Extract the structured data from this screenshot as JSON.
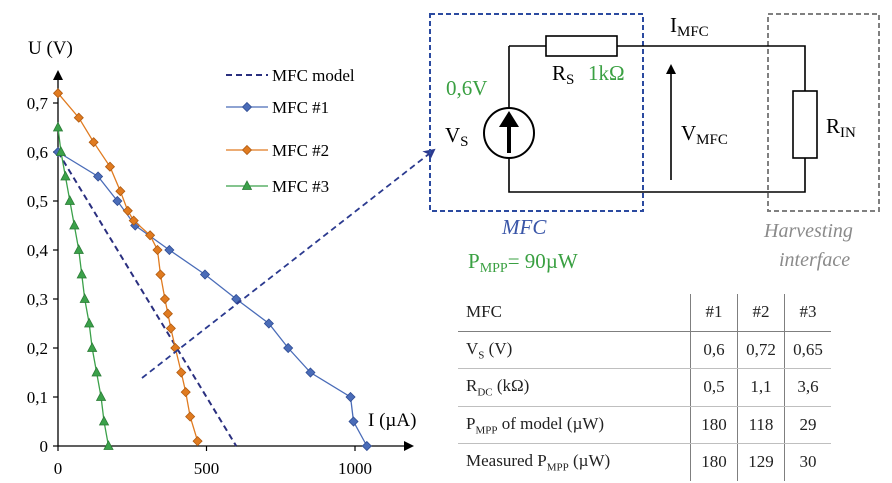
{
  "chart_data": {
    "type": "line",
    "ylabel": "U (V)",
    "xlabel": "I (µA)",
    "xlim": [
      0,
      1200
    ],
    "ylim": [
      0,
      0.8
    ],
    "xticks": [
      "0",
      "500",
      "1000"
    ],
    "xtick_values": [
      0,
      500,
      1000
    ],
    "yticks": [
      "0",
      "0,1",
      "0,2",
      "0,3",
      "0,4",
      "0,5",
      "0,6",
      "0,7"
    ],
    "ytick_values": [
      0,
      0.1,
      0.2,
      0.3,
      0.4,
      0.5,
      0.6,
      0.7
    ],
    "grid": false,
    "legend_position": "top-center",
    "series": [
      {
        "name": "MFC model",
        "style": "dashed",
        "marker": "none",
        "color": "#2a2f7f",
        "points": [
          [
            0,
            0.6
          ],
          [
            600,
            0.0
          ]
        ]
      },
      {
        "name": "MFC #1",
        "style": "solid",
        "marker": "diamond",
        "color": "#4a6cb8",
        "points": [
          [
            0,
            0.6
          ],
          [
            135,
            0.55
          ],
          [
            200,
            0.5
          ],
          [
            260,
            0.45
          ],
          [
            375,
            0.4
          ],
          [
            495,
            0.35
          ],
          [
            600,
            0.3
          ],
          [
            710,
            0.25
          ],
          [
            775,
            0.2
          ],
          [
            850,
            0.15
          ],
          [
            985,
            0.1
          ],
          [
            995,
            0.05
          ],
          [
            1040,
            0.0
          ]
        ]
      },
      {
        "name": "MFC #2",
        "style": "solid",
        "marker": "diamond",
        "color": "#e07b20",
        "points": [
          [
            0,
            0.72
          ],
          [
            70,
            0.67
          ],
          [
            120,
            0.62
          ],
          [
            175,
            0.57
          ],
          [
            210,
            0.52
          ],
          [
            235,
            0.48
          ],
          [
            255,
            0.46
          ],
          [
            310,
            0.43
          ],
          [
            335,
            0.4
          ],
          [
            345,
            0.35
          ],
          [
            360,
            0.3
          ],
          [
            370,
            0.27
          ],
          [
            380,
            0.24
          ],
          [
            395,
            0.2
          ],
          [
            415,
            0.15
          ],
          [
            430,
            0.11
          ],
          [
            445,
            0.06
          ],
          [
            470,
            0.01
          ]
        ]
      },
      {
        "name": "MFC #3",
        "style": "solid",
        "marker": "triangle",
        "color": "#3ba14a",
        "points": [
          [
            0,
            0.65
          ],
          [
            10,
            0.6
          ],
          [
            25,
            0.55
          ],
          [
            40,
            0.5
          ],
          [
            55,
            0.45
          ],
          [
            70,
            0.4
          ],
          [
            80,
            0.35
          ],
          [
            90,
            0.3
          ],
          [
            105,
            0.25
          ],
          [
            115,
            0.2
          ],
          [
            130,
            0.15
          ],
          [
            145,
            0.1
          ],
          [
            155,
            0.05
          ],
          [
            170,
            0.0
          ]
        ]
      }
    ]
  },
  "circuit": {
    "current_label": "I",
    "current_sub": "MFC",
    "source_value": "0,6V",
    "source_label": "V",
    "source_sub": "S",
    "rs_label": "R",
    "rs_sub": "S",
    "rs_value": "1kΩ",
    "vmfc_label": "V",
    "vmfc_sub": "MFC",
    "rin_label": "R",
    "rin_sub": "IN",
    "mfc_box_label": "MFC",
    "pmpp_label": "P",
    "pmpp_sub": "MPP",
    "pmpp_value": "= 90µW",
    "harvest_line1": "Harvesting",
    "harvest_line2": "interface",
    "colors": {
      "mfc_box": "#2b4aa0",
      "green_text": "#3aa042",
      "harvest_box": "#808080",
      "mfc_label": "#3a56a8"
    }
  },
  "table": {
    "header": {
      "label": "MFC",
      "c1": "#1",
      "c2": "#2",
      "c3": "#3"
    },
    "rows": [
      {
        "pre": "V",
        "sub": "S",
        "post": " (V)",
        "v1": "0,6",
        "v2": "0,72",
        "v3": "0,65"
      },
      {
        "pre": "R",
        "sub": "DC",
        "post": " (kΩ)",
        "v1": "0,5",
        "v2": "1,1",
        "v3": "3,6"
      },
      {
        "pre": "P",
        "sub": "MPP",
        "post": " of model (µW)",
        "v1": "180",
        "v2": "118",
        "v3": "29"
      },
      {
        "pre": "Measured P",
        "sub": "MPP",
        "post": " (µW)",
        "v1": "180",
        "v2": "129",
        "v3": "30"
      }
    ]
  }
}
